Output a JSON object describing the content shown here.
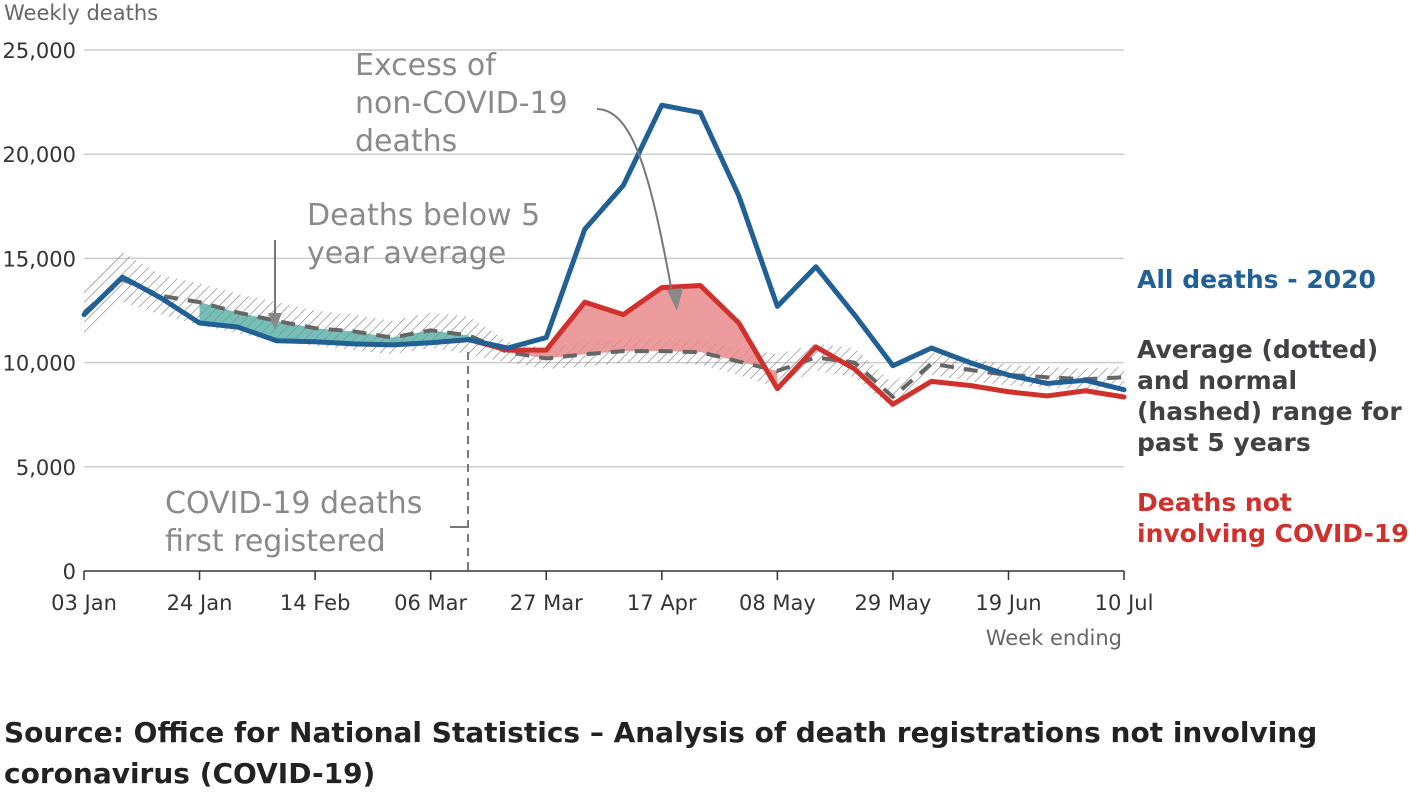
{
  "chart_data": {
    "type": "line",
    "ylabel": "Weekly deaths",
    "xlabel": "Week ending",
    "ylim": [
      0,
      25000
    ],
    "y_ticks": [
      0,
      5000,
      10000,
      15000,
      20000,
      25000
    ],
    "y_tick_labels": [
      "0",
      "5,000",
      "10,000",
      "15,000",
      "20,000",
      "25,000"
    ],
    "x_tick_labels": [
      "03 Jan",
      "24 Jan",
      "14 Feb",
      "06 Mar",
      "27 Mar",
      "17 Apr",
      "08 May",
      "29 May",
      "19 Jun",
      "10 Jul"
    ],
    "x_tick_week_index": [
      0,
      3,
      6,
      9,
      12,
      15,
      18,
      21,
      24,
      27
    ],
    "series": [
      {
        "name": "All deaths - 2020",
        "color": "#206095",
        "values": [
          12300,
          14100,
          13100,
          11900,
          11700,
          11050,
          11000,
          10900,
          10850,
          10950,
          11100,
          10700,
          11200,
          16400,
          18500,
          22350,
          22000,
          18000,
          12700,
          14600,
          12300,
          9850,
          10700,
          10000,
          9400,
          9000,
          9150,
          8700
        ]
      },
      {
        "name": "Deaths not involving COVID-19",
        "color": "#d0312d",
        "values": [
          null,
          null,
          null,
          null,
          null,
          null,
          null,
          null,
          null,
          null,
          11100,
          10600,
          10600,
          12900,
          12300,
          13600,
          13700,
          11900,
          8750,
          10750,
          9700,
          8000,
          9100,
          8900,
          8600,
          8400,
          8650,
          8350
        ]
      },
      {
        "name": "Average (dotted) and normal (hashed) range for past 5 years",
        "color": "#666666",
        "values": [
          12400,
          14000,
          13200,
          12900,
          12400,
          12000,
          11650,
          11500,
          11200,
          11550,
          11300,
          10500,
          10200,
          10400,
          10550,
          10550,
          10500,
          10050,
          9600,
          10250,
          10000,
          8350,
          9950,
          9650,
          9400,
          9300,
          9200,
          9300
        ]
      }
    ],
    "normal_range": {
      "lower": [
        11300,
        12900,
        12300,
        11800,
        11400,
        11000,
        10800,
        10600,
        10400,
        10700,
        10400,
        10000,
        9700,
        9800,
        10000,
        10000,
        9900,
        9400,
        8800,
        9600,
        9300,
        7800,
        9400,
        9100,
        8900,
        8800,
        8700,
        8800
      ],
      "upper": [
        13500,
        15300,
        14200,
        13800,
        13300,
        12900,
        12500,
        12300,
        12000,
        12400,
        12200,
        11000,
        10700,
        11000,
        11100,
        11100,
        11100,
        10700,
        10400,
        10900,
        10700,
        9000,
        10500,
        10200,
        9900,
        9800,
        9700,
        9800
      ]
    },
    "annotations": {
      "excess": "Excess of non-COVID-19 deaths",
      "below": "Deaths below 5 year average",
      "first_registered": "COVID-19 deaths first registered"
    },
    "legend": {
      "all_deaths": "All deaths - 2020",
      "average": "Average (dotted) and normal (hashed) range for past 5 years",
      "not_covid": "Deaths not involving COVID-19"
    }
  },
  "labels": {
    "y_axis_title": "Weekly deaths",
    "x_axis_title": "Week ending",
    "annotation_excess": [
      "Excess of",
      "non-COVID-19",
      "deaths"
    ],
    "annotation_below": [
      "Deaths below 5",
      "year average"
    ],
    "annotation_first": [
      "COVID-19 deaths",
      "first registered"
    ],
    "legend_all": [
      "All deaths - 2020"
    ],
    "legend_avg": [
      "Average (dotted)",
      "and normal",
      "(hashed) range for",
      "past 5 years"
    ],
    "legend_notcovid": [
      "Deaths not",
      "involving COVID-19"
    ]
  },
  "colors": {
    "all_deaths": "#206095",
    "not_covid": "#d0312d",
    "average": "#666666",
    "below_fill": "#4ca89e",
    "excess_fill": "#e88a8a",
    "annotation_text": "#8a8a8a",
    "grid": "#cccccc",
    "axis_text": "#333333"
  },
  "source": "Source: Office for National Statistics – Analysis of death registrations not involving coronavirus (COVID-19)"
}
